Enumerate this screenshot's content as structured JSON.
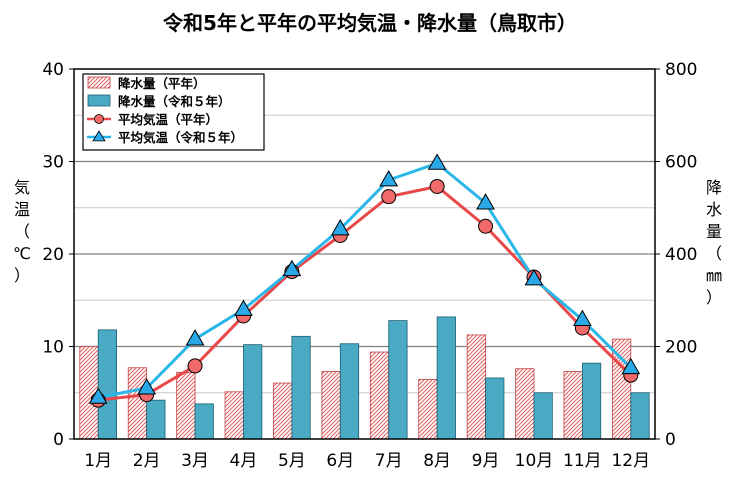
{
  "chart_data": {
    "type": "bar+line",
    "title": "令和5年と平年の平均気温・降水量（鳥取市）",
    "categories": [
      "1月",
      "2月",
      "3月",
      "4月",
      "5月",
      "6月",
      "7月",
      "8月",
      "9月",
      "10月",
      "11月",
      "12月"
    ],
    "y_left": {
      "label": "気温（℃）",
      "min": 0,
      "max": 40,
      "ticks": [
        0,
        10,
        20,
        30,
        40
      ]
    },
    "y_right": {
      "label": "降水量（㎜）",
      "min": 0,
      "max": 800,
      "ticks": [
        0,
        200,
        400,
        600,
        800
      ]
    },
    "legend_position": "top-left",
    "grid": true,
    "series": [
      {
        "name": "降水量（平年）",
        "kind": "bar",
        "axis": "right",
        "style": "hatched",
        "color": "#e06060",
        "values": [
          200,
          154,
          144,
          102,
          121,
          146,
          188,
          129,
          225,
          152,
          146,
          216
        ]
      },
      {
        "name": "降水量（令和５年）",
        "kind": "bar",
        "axis": "right",
        "style": "solid",
        "color": "#4aaac4",
        "values": [
          236,
          84,
          76,
          204,
          222,
          206,
          256,
          264,
          132,
          100,
          164,
          100
        ]
      },
      {
        "name": "平均気温（平年）",
        "kind": "line",
        "axis": "left",
        "marker": "circle",
        "color": "#e84848",
        "values": [
          4.2,
          4.8,
          7.9,
          13.3,
          18.1,
          22.0,
          26.2,
          27.3,
          23.0,
          17.5,
          12.0,
          6.9
        ]
      },
      {
        "name": "平均気温（令和５年）",
        "kind": "line",
        "axis": "left",
        "marker": "triangle",
        "color": "#29b6e8",
        "values": [
          4.5,
          5.5,
          10.8,
          14.0,
          18.3,
          22.7,
          28.0,
          29.8,
          25.5,
          17.3,
          12.9,
          7.7
        ]
      }
    ]
  }
}
